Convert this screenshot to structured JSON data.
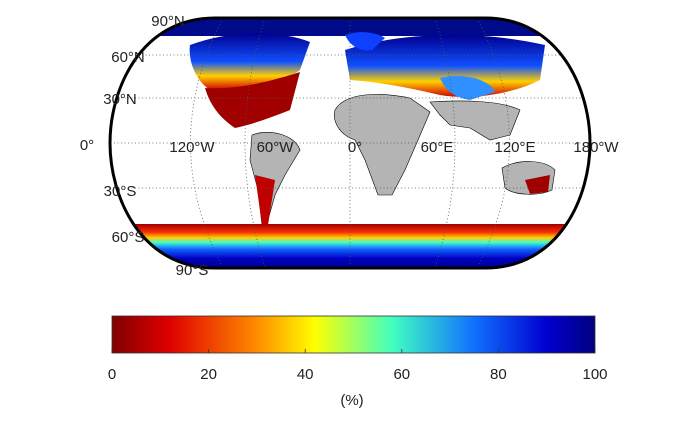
{
  "map": {
    "lat_labels": [
      "90°N",
      "60°N",
      "30°N",
      "0°",
      "30°S",
      "60°S",
      "90°S"
    ],
    "lon_labels": [
      "120°W",
      "60°W",
      "0°",
      "60°E",
      "120°E",
      "180°W"
    ]
  },
  "colorbar": {
    "lim": [
      0,
      100
    ],
    "ticks": [
      0,
      20,
      40,
      60,
      80,
      100
    ],
    "label": "(%)"
  }
}
